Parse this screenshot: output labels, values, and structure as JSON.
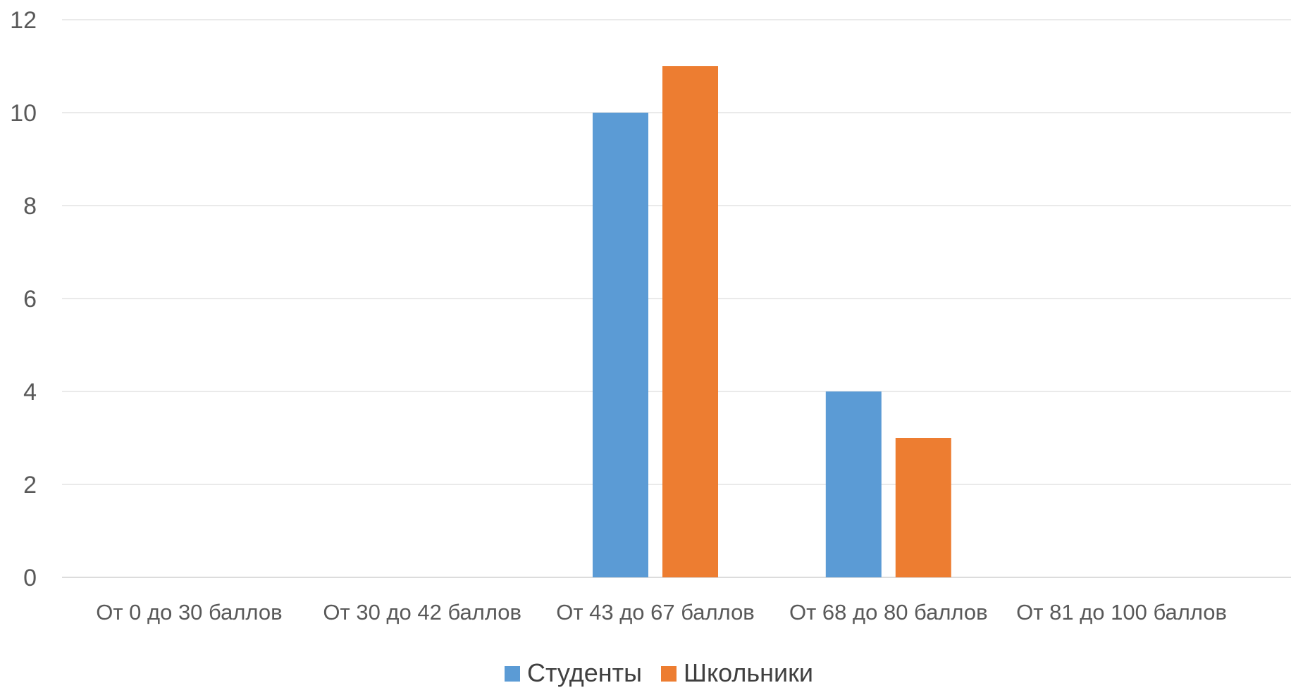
{
  "chart_data": {
    "type": "bar",
    "categories": [
      "От 0 до 30 баллов",
      "От 30 до 42 баллов",
      "От 43 до 67 баллов",
      "От 68 до 80 баллов",
      "От 81 до 100 баллов"
    ],
    "series": [
      {
        "name": "Студенты",
        "values": [
          0,
          0,
          10,
          4,
          0
        ],
        "color": "#5B9BD5"
      },
      {
        "name": "Школьники",
        "values": [
          0,
          0,
          11,
          3,
          0
        ],
        "color": "#ED7D31"
      }
    ],
    "yticks": [
      "0",
      "2",
      "4",
      "6",
      "8",
      "10",
      "12"
    ],
    "ylim": [
      0,
      12
    ],
    "grid": true,
    "legend_position": "bottom",
    "title": "",
    "xlabel": "",
    "ylabel": ""
  }
}
